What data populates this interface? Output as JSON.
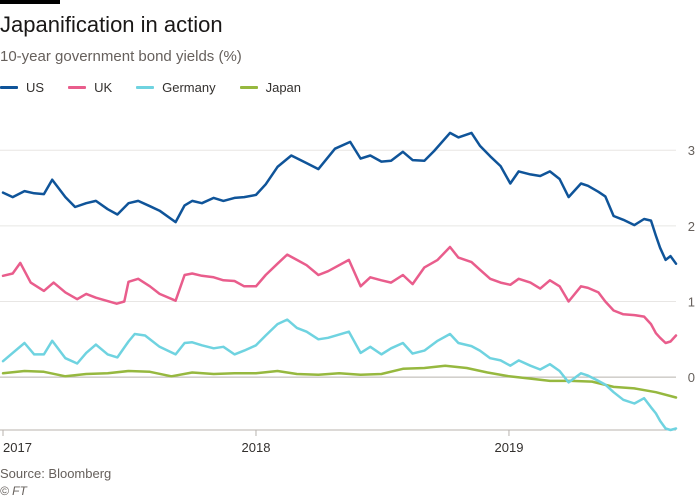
{
  "header": {
    "title": "Japanification in action",
    "subtitle": "10-year government bond yields (%)"
  },
  "footer": {
    "source": "Source: Bloomberg",
    "credit": "© FT"
  },
  "chart_data": {
    "type": "line",
    "title": "Japanification in action",
    "subtitle": "10-year government bond yields (%)",
    "x_unit": "date",
    "xlim": [
      "2017-01-01",
      "2019-08-30"
    ],
    "ylim": [
      -0.7,
      3.4
    ],
    "y_ticks": [
      0,
      1,
      2,
      3
    ],
    "x_ticks": [
      {
        "date": "2017-01-01",
        "label": "2017"
      },
      {
        "date": "2018-01-01",
        "label": "2018"
      },
      {
        "date": "2019-01-01",
        "label": "2019"
      }
    ],
    "grid": true,
    "legend_position": "top-left",
    "series": [
      {
        "name": "US",
        "color": "#0f5499",
        "points": [
          [
            "2017-01-01",
            2.44
          ],
          [
            "2017-01-15",
            2.38
          ],
          [
            "2017-02-01",
            2.46
          ],
          [
            "2017-02-15",
            2.43
          ],
          [
            "2017-03-01",
            2.42
          ],
          [
            "2017-03-13",
            2.61
          ],
          [
            "2017-04-01",
            2.38
          ],
          [
            "2017-04-15",
            2.25
          ],
          [
            "2017-05-01",
            2.3
          ],
          [
            "2017-05-15",
            2.33
          ],
          [
            "2017-06-01",
            2.22
          ],
          [
            "2017-06-15",
            2.15
          ],
          [
            "2017-07-01",
            2.3
          ],
          [
            "2017-07-15",
            2.33
          ],
          [
            "2017-08-01",
            2.26
          ],
          [
            "2017-08-15",
            2.2
          ],
          [
            "2017-09-07",
            2.05
          ],
          [
            "2017-09-20",
            2.27
          ],
          [
            "2017-10-01",
            2.33
          ],
          [
            "2017-10-15",
            2.3
          ],
          [
            "2017-11-01",
            2.37
          ],
          [
            "2017-11-15",
            2.33
          ],
          [
            "2017-12-01",
            2.37
          ],
          [
            "2017-12-15",
            2.38
          ],
          [
            "2018-01-01",
            2.41
          ],
          [
            "2018-01-15",
            2.55
          ],
          [
            "2018-02-01",
            2.78
          ],
          [
            "2018-02-21",
            2.93
          ],
          [
            "2018-03-15",
            2.83
          ],
          [
            "2018-04-01",
            2.75
          ],
          [
            "2018-04-25",
            3.02
          ],
          [
            "2018-05-17",
            3.11
          ],
          [
            "2018-06-01",
            2.89
          ],
          [
            "2018-06-15",
            2.93
          ],
          [
            "2018-07-01",
            2.85
          ],
          [
            "2018-07-15",
            2.86
          ],
          [
            "2018-08-01",
            2.98
          ],
          [
            "2018-08-15",
            2.87
          ],
          [
            "2018-09-01",
            2.86
          ],
          [
            "2018-09-15",
            2.99
          ],
          [
            "2018-10-08",
            3.23
          ],
          [
            "2018-10-20",
            3.17
          ],
          [
            "2018-11-08",
            3.23
          ],
          [
            "2018-11-20",
            3.06
          ],
          [
            "2018-12-05",
            2.92
          ],
          [
            "2018-12-20",
            2.79
          ],
          [
            "2019-01-03",
            2.56
          ],
          [
            "2019-01-15",
            2.72
          ],
          [
            "2019-02-01",
            2.68
          ],
          [
            "2019-02-15",
            2.66
          ],
          [
            "2019-03-01",
            2.72
          ],
          [
            "2019-03-15",
            2.62
          ],
          [
            "2019-03-28",
            2.38
          ],
          [
            "2019-04-15",
            2.56
          ],
          [
            "2019-04-25",
            2.53
          ],
          [
            "2019-05-10",
            2.45
          ],
          [
            "2019-05-20",
            2.39
          ],
          [
            "2019-06-01",
            2.13
          ],
          [
            "2019-06-15",
            2.08
          ],
          [
            "2019-07-01",
            2.01
          ],
          [
            "2019-07-15",
            2.09
          ],
          [
            "2019-07-25",
            2.07
          ],
          [
            "2019-08-01",
            1.87
          ],
          [
            "2019-08-07",
            1.71
          ],
          [
            "2019-08-15",
            1.55
          ],
          [
            "2019-08-22",
            1.6
          ],
          [
            "2019-08-30",
            1.5
          ]
        ]
      },
      {
        "name": "UK",
        "color": "#e95d8c",
        "points": [
          [
            "2017-01-01",
            1.34
          ],
          [
            "2017-01-15",
            1.37
          ],
          [
            "2017-01-26",
            1.51
          ],
          [
            "2017-02-10",
            1.25
          ],
          [
            "2017-03-01",
            1.14
          ],
          [
            "2017-03-15",
            1.25
          ],
          [
            "2017-04-01",
            1.12
          ],
          [
            "2017-04-18",
            1.03
          ],
          [
            "2017-05-01",
            1.1
          ],
          [
            "2017-05-15",
            1.05
          ],
          [
            "2017-06-14",
            0.97
          ],
          [
            "2017-06-25",
            1.0
          ],
          [
            "2017-07-01",
            1.26
          ],
          [
            "2017-07-15",
            1.3
          ],
          [
            "2017-08-01",
            1.2
          ],
          [
            "2017-08-15",
            1.1
          ],
          [
            "2017-09-07",
            1.01
          ],
          [
            "2017-09-20",
            1.35
          ],
          [
            "2017-10-01",
            1.37
          ],
          [
            "2017-10-15",
            1.34
          ],
          [
            "2017-11-01",
            1.32
          ],
          [
            "2017-11-15",
            1.28
          ],
          [
            "2017-12-01",
            1.27
          ],
          [
            "2017-12-15",
            1.2
          ],
          [
            "2018-01-01",
            1.2
          ],
          [
            "2018-01-15",
            1.35
          ],
          [
            "2018-02-01",
            1.5
          ],
          [
            "2018-02-15",
            1.62
          ],
          [
            "2018-03-01",
            1.55
          ],
          [
            "2018-03-15",
            1.48
          ],
          [
            "2018-04-01",
            1.35
          ],
          [
            "2018-04-15",
            1.4
          ],
          [
            "2018-05-15",
            1.55
          ],
          [
            "2018-06-01",
            1.2
          ],
          [
            "2018-06-15",
            1.32
          ],
          [
            "2018-07-01",
            1.28
          ],
          [
            "2018-07-15",
            1.25
          ],
          [
            "2018-08-01",
            1.35
          ],
          [
            "2018-08-15",
            1.23
          ],
          [
            "2018-09-01",
            1.45
          ],
          [
            "2018-09-20",
            1.55
          ],
          [
            "2018-10-08",
            1.72
          ],
          [
            "2018-10-20",
            1.58
          ],
          [
            "2018-11-08",
            1.52
          ],
          [
            "2018-11-20",
            1.42
          ],
          [
            "2018-12-05",
            1.3
          ],
          [
            "2018-12-20",
            1.25
          ],
          [
            "2019-01-03",
            1.22
          ],
          [
            "2019-01-15",
            1.3
          ],
          [
            "2019-02-01",
            1.25
          ],
          [
            "2019-02-15",
            1.17
          ],
          [
            "2019-03-01",
            1.28
          ],
          [
            "2019-03-15",
            1.2
          ],
          [
            "2019-03-28",
            1.0
          ],
          [
            "2019-04-15",
            1.2
          ],
          [
            "2019-04-25",
            1.18
          ],
          [
            "2019-05-10",
            1.12
          ],
          [
            "2019-05-20",
            1.0
          ],
          [
            "2019-06-01",
            0.88
          ],
          [
            "2019-06-15",
            0.83
          ],
          [
            "2019-07-01",
            0.82
          ],
          [
            "2019-07-15",
            0.8
          ],
          [
            "2019-07-25",
            0.7
          ],
          [
            "2019-08-01",
            0.58
          ],
          [
            "2019-08-07",
            0.52
          ],
          [
            "2019-08-15",
            0.45
          ],
          [
            "2019-08-22",
            0.47
          ],
          [
            "2019-08-30",
            0.55
          ]
        ]
      },
      {
        "name": "Germany",
        "color": "#6fd3e0",
        "points": [
          [
            "2017-01-01",
            0.21
          ],
          [
            "2017-01-15",
            0.32
          ],
          [
            "2017-02-01",
            0.45
          ],
          [
            "2017-02-15",
            0.3
          ],
          [
            "2017-03-01",
            0.3
          ],
          [
            "2017-03-13",
            0.48
          ],
          [
            "2017-04-01",
            0.25
          ],
          [
            "2017-04-18",
            0.18
          ],
          [
            "2017-05-01",
            0.32
          ],
          [
            "2017-05-15",
            0.43
          ],
          [
            "2017-06-01",
            0.3
          ],
          [
            "2017-06-15",
            0.26
          ],
          [
            "2017-07-01",
            0.47
          ],
          [
            "2017-07-10",
            0.57
          ],
          [
            "2017-07-25",
            0.55
          ],
          [
            "2017-08-15",
            0.4
          ],
          [
            "2017-09-07",
            0.3
          ],
          [
            "2017-09-20",
            0.45
          ],
          [
            "2017-10-01",
            0.46
          ],
          [
            "2017-10-15",
            0.42
          ],
          [
            "2017-11-01",
            0.38
          ],
          [
            "2017-11-15",
            0.4
          ],
          [
            "2017-12-01",
            0.3
          ],
          [
            "2017-12-15",
            0.35
          ],
          [
            "2018-01-01",
            0.42
          ],
          [
            "2018-01-15",
            0.55
          ],
          [
            "2018-02-01",
            0.7
          ],
          [
            "2018-02-15",
            0.76
          ],
          [
            "2018-03-01",
            0.65
          ],
          [
            "2018-03-15",
            0.6
          ],
          [
            "2018-04-01",
            0.5
          ],
          [
            "2018-04-15",
            0.52
          ],
          [
            "2018-05-15",
            0.6
          ],
          [
            "2018-06-01",
            0.32
          ],
          [
            "2018-06-15",
            0.4
          ],
          [
            "2018-07-01",
            0.3
          ],
          [
            "2018-07-15",
            0.38
          ],
          [
            "2018-08-01",
            0.45
          ],
          [
            "2018-08-15",
            0.31
          ],
          [
            "2018-09-01",
            0.35
          ],
          [
            "2018-09-20",
            0.48
          ],
          [
            "2018-10-08",
            0.57
          ],
          [
            "2018-10-20",
            0.45
          ],
          [
            "2018-11-08",
            0.41
          ],
          [
            "2018-11-20",
            0.35
          ],
          [
            "2018-12-05",
            0.25
          ],
          [
            "2018-12-20",
            0.22
          ],
          [
            "2019-01-03",
            0.15
          ],
          [
            "2019-01-15",
            0.22
          ],
          [
            "2019-02-01",
            0.15
          ],
          [
            "2019-02-15",
            0.1
          ],
          [
            "2019-03-01",
            0.17
          ],
          [
            "2019-03-15",
            0.08
          ],
          [
            "2019-03-28",
            -0.07
          ],
          [
            "2019-04-15",
            0.05
          ],
          [
            "2019-04-25",
            0.02
          ],
          [
            "2019-05-10",
            -0.05
          ],
          [
            "2019-05-20",
            -0.1
          ],
          [
            "2019-06-01",
            -0.2
          ],
          [
            "2019-06-15",
            -0.3
          ],
          [
            "2019-07-01",
            -0.35
          ],
          [
            "2019-07-15",
            -0.28
          ],
          [
            "2019-07-25",
            -0.4
          ],
          [
            "2019-08-01",
            -0.48
          ],
          [
            "2019-08-07",
            -0.58
          ],
          [
            "2019-08-15",
            -0.68
          ],
          [
            "2019-08-22",
            -0.7
          ],
          [
            "2019-08-30",
            -0.68
          ]
        ]
      },
      {
        "name": "Japan",
        "color": "#96b83f",
        "points": [
          [
            "2017-01-01",
            0.05
          ],
          [
            "2017-02-01",
            0.08
          ],
          [
            "2017-03-01",
            0.07
          ],
          [
            "2017-04-01",
            0.01
          ],
          [
            "2017-05-01",
            0.04
          ],
          [
            "2017-06-01",
            0.05
          ],
          [
            "2017-07-01",
            0.08
          ],
          [
            "2017-08-01",
            0.07
          ],
          [
            "2017-09-01",
            0.01
          ],
          [
            "2017-10-01",
            0.06
          ],
          [
            "2017-11-01",
            0.04
          ],
          [
            "2017-12-01",
            0.05
          ],
          [
            "2018-01-01",
            0.05
          ],
          [
            "2018-02-01",
            0.08
          ],
          [
            "2018-03-01",
            0.04
          ],
          [
            "2018-04-01",
            0.03
          ],
          [
            "2018-05-01",
            0.05
          ],
          [
            "2018-06-01",
            0.03
          ],
          [
            "2018-07-01",
            0.04
          ],
          [
            "2018-08-01",
            0.11
          ],
          [
            "2018-09-01",
            0.12
          ],
          [
            "2018-10-01",
            0.15
          ],
          [
            "2018-11-01",
            0.12
          ],
          [
            "2018-12-01",
            0.06
          ],
          [
            "2019-01-01",
            0.01
          ],
          [
            "2019-02-01",
            -0.02
          ],
          [
            "2019-03-01",
            -0.05
          ],
          [
            "2019-04-01",
            -0.05
          ],
          [
            "2019-05-01",
            -0.06
          ],
          [
            "2019-06-01",
            -0.13
          ],
          [
            "2019-07-01",
            -0.15
          ],
          [
            "2019-08-01",
            -0.2
          ],
          [
            "2019-08-30",
            -0.27
          ]
        ]
      }
    ]
  }
}
